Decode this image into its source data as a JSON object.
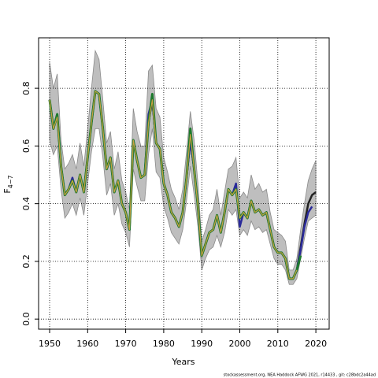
{
  "chart_data": {
    "type": "line",
    "xlabel": "Years",
    "ylabel": "F",
    "ylabel_sub": "4−7",
    "footer": "stockassessment.org,  NEA Haddock  AFWG  2021,  r14433 ,  git:  c28bdc2a44ad",
    "xlim": [
      1947.1,
      2023.5
    ],
    "ylim": [
      -0.035,
      0.975
    ],
    "xticks": [
      1950,
      1960,
      1970,
      1980,
      1990,
      2000,
      2010,
      2020
    ],
    "yticks": [
      {
        "value": 0,
        "label": "0.0"
      },
      0.2,
      0.4,
      0.6,
      0.8
    ],
    "grid": true,
    "x": [
      1950,
      1951,
      1952,
      1953,
      1954,
      1955,
      1956,
      1957,
      1958,
      1959,
      1960,
      1961,
      1962,
      1963,
      1964,
      1965,
      1966,
      1967,
      1968,
      1969,
      1970,
      1971,
      1972,
      1973,
      1974,
      1975,
      1976,
      1977,
      1978,
      1979,
      1980,
      1981,
      1982,
      1983,
      1984,
      1985,
      1986,
      1987,
      1988,
      1989,
      1990,
      1991,
      1992,
      1993,
      1994,
      1995,
      1996,
      1997,
      1998,
      1999,
      2000,
      2001,
      2002,
      2003,
      2004,
      2005,
      2006,
      2007,
      2008,
      2009,
      2010,
      2011,
      2012,
      2013,
      2014,
      2015,
      2016,
      2017,
      2018,
      2019,
      2020
    ],
    "band": {
      "color": "#bebebe",
      "upper": [
        0.89,
        0.8,
        0.85,
        0.62,
        0.52,
        0.54,
        0.57,
        0.52,
        0.61,
        0.53,
        0.66,
        0.8,
        0.93,
        0.9,
        0.76,
        0.61,
        0.65,
        0.52,
        0.58,
        0.48,
        0.44,
        0.38,
        0.73,
        0.65,
        0.6,
        0.6,
        0.86,
        0.88,
        0.73,
        0.7,
        0.56,
        0.51,
        0.45,
        0.42,
        0.38,
        0.45,
        0.58,
        0.72,
        0.62,
        0.47,
        0.27,
        0.31,
        0.36,
        0.38,
        0.45,
        0.36,
        0.44,
        0.52,
        0.53,
        0.56,
        0.42,
        0.44,
        0.42,
        0.5,
        0.45,
        0.47,
        0.44,
        0.45,
        0.37,
        0.31,
        0.3,
        0.29,
        0.27,
        0.17,
        0.17,
        0.21,
        0.31,
        0.4,
        0.48,
        0.52,
        0.55
      ],
      "lower": [
        0.62,
        0.57,
        0.6,
        0.45,
        0.35,
        0.37,
        0.4,
        0.36,
        0.42,
        0.36,
        0.47,
        0.58,
        0.66,
        0.66,
        0.56,
        0.43,
        0.47,
        0.36,
        0.4,
        0.33,
        0.3,
        0.25,
        0.52,
        0.46,
        0.41,
        0.41,
        0.57,
        0.66,
        0.51,
        0.49,
        0.39,
        0.35,
        0.3,
        0.28,
        0.26,
        0.31,
        0.41,
        0.53,
        0.43,
        0.32,
        0.17,
        0.21,
        0.24,
        0.25,
        0.29,
        0.25,
        0.3,
        0.38,
        0.36,
        0.38,
        0.29,
        0.31,
        0.29,
        0.34,
        0.31,
        0.32,
        0.3,
        0.31,
        0.26,
        0.21,
        0.19,
        0.19,
        0.17,
        0.12,
        0.12,
        0.14,
        0.21,
        0.28,
        0.34,
        0.35,
        0.36
      ]
    },
    "series": [
      {
        "color": "#222222",
        "width": 2.5,
        "values": [
          0.76,
          0.66,
          0.71,
          0.53,
          0.43,
          0.45,
          0.48,
          0.44,
          0.5,
          0.44,
          0.56,
          0.68,
          0.79,
          0.78,
          0.66,
          0.52,
          0.56,
          0.44,
          0.48,
          0.4,
          0.37,
          0.31,
          0.62,
          0.55,
          0.49,
          0.5,
          0.68,
          0.76,
          0.61,
          0.59,
          0.47,
          0.43,
          0.37,
          0.35,
          0.32,
          0.37,
          0.49,
          0.62,
          0.52,
          0.39,
          0.22,
          0.26,
          0.3,
          0.31,
          0.36,
          0.3,
          0.37,
          0.45,
          0.43,
          0.45,
          0.35,
          0.37,
          0.35,
          0.41,
          0.37,
          0.38,
          0.36,
          0.37,
          0.31,
          0.25,
          0.23,
          0.23,
          0.21,
          0.14,
          0.14,
          0.17,
          0.25,
          0.33,
          0.4,
          0.43,
          0.44
        ]
      },
      {
        "color": "#2a2a9a",
        "width": 2.5,
        "values": [
          0.76,
          0.66,
          0.71,
          0.53,
          0.43,
          0.45,
          0.49,
          0.44,
          0.5,
          0.44,
          0.56,
          0.68,
          0.79,
          0.78,
          0.66,
          0.52,
          0.56,
          0.44,
          0.48,
          0.4,
          0.37,
          0.31,
          0.62,
          0.55,
          0.49,
          0.5,
          0.71,
          0.76,
          0.61,
          0.59,
          0.47,
          0.43,
          0.37,
          0.35,
          0.32,
          0.37,
          0.49,
          0.62,
          0.52,
          0.39,
          0.22,
          0.26,
          0.3,
          0.31,
          0.36,
          0.3,
          0.37,
          0.45,
          0.43,
          0.47,
          0.32,
          0.37,
          0.35,
          0.41,
          0.37,
          0.38,
          0.36,
          0.37,
          0.31,
          0.25,
          0.23,
          0.23,
          0.21,
          0.14,
          0.14,
          0.17,
          0.24,
          0.32,
          0.37,
          0.39,
          null
        ]
      },
      {
        "color": "#1e7a2e",
        "width": 3,
        "values": [
          0.76,
          0.66,
          0.71,
          0.53,
          0.43,
          0.45,
          0.48,
          0.44,
          0.5,
          0.44,
          0.56,
          0.68,
          0.79,
          0.78,
          0.66,
          0.52,
          0.56,
          0.44,
          0.48,
          0.4,
          0.37,
          0.31,
          0.62,
          0.55,
          0.49,
          0.5,
          0.68,
          0.78,
          0.61,
          0.59,
          0.47,
          0.43,
          0.37,
          0.35,
          0.32,
          0.37,
          0.49,
          0.66,
          0.52,
          0.39,
          0.22,
          0.26,
          0.3,
          0.31,
          0.36,
          0.3,
          0.37,
          0.45,
          0.43,
          0.45,
          0.35,
          0.37,
          0.35,
          0.41,
          0.37,
          0.38,
          0.36,
          0.37,
          0.31,
          0.25,
          0.23,
          0.23,
          0.21,
          0.14,
          0.14,
          0.17,
          0.22,
          null,
          null,
          null,
          null
        ]
      },
      {
        "color": "#c8a040",
        "width": 1.2,
        "values": [
          0.76,
          0.66,
          0.7,
          0.53,
          0.43,
          0.45,
          0.48,
          0.44,
          0.5,
          0.44,
          0.56,
          0.68,
          0.79,
          0.78,
          0.66,
          0.52,
          0.56,
          0.44,
          0.48,
          0.4,
          0.37,
          0.31,
          0.62,
          0.55,
          0.49,
          0.5,
          0.68,
          0.76,
          0.61,
          0.59,
          0.47,
          0.43,
          0.37,
          0.35,
          0.32,
          0.37,
          0.49,
          0.64,
          0.52,
          0.39,
          0.22,
          0.26,
          0.3,
          0.31,
          0.36,
          0.3,
          0.37,
          0.45,
          0.43,
          0.45,
          0.35,
          0.37,
          0.35,
          0.41,
          0.37,
          0.38,
          0.36,
          0.37,
          0.31,
          0.25,
          0.23,
          0.23,
          0.21,
          0.14,
          0.14,
          0.17,
          null,
          null,
          null,
          null,
          null
        ]
      }
    ]
  }
}
